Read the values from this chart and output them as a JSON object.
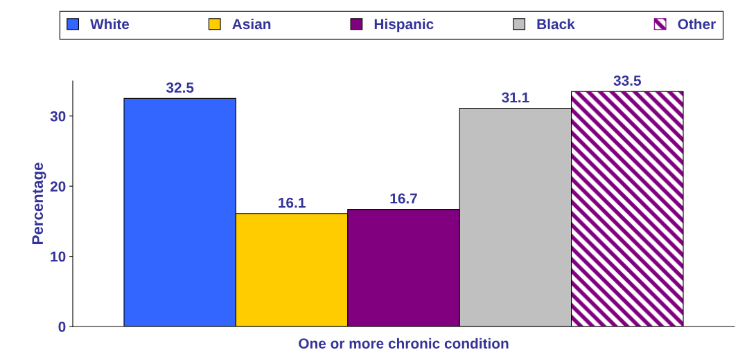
{
  "chart_data": {
    "type": "bar",
    "categories": [
      "One or more chronic condition"
    ],
    "ylabel": "Percentage",
    "series": [
      {
        "name": "White",
        "color": "#3366ff",
        "values": [
          32.5
        ]
      },
      {
        "name": "Asian",
        "color": "#ffcc00",
        "values": [
          16.1
        ]
      },
      {
        "name": "Hispanic",
        "color": "#800080",
        "values": [
          16.7
        ]
      },
      {
        "name": "Black",
        "color": "#c0c0c0",
        "values": [
          31.1
        ]
      },
      {
        "name": "Other",
        "color": "#800080",
        "values": [
          33.5
        ]
      }
    ],
    "ylim": [
      0,
      35
    ],
    "yticks": [
      0,
      10,
      20,
      30
    ],
    "data_labels": true,
    "legend": "top",
    "grid": false
  }
}
